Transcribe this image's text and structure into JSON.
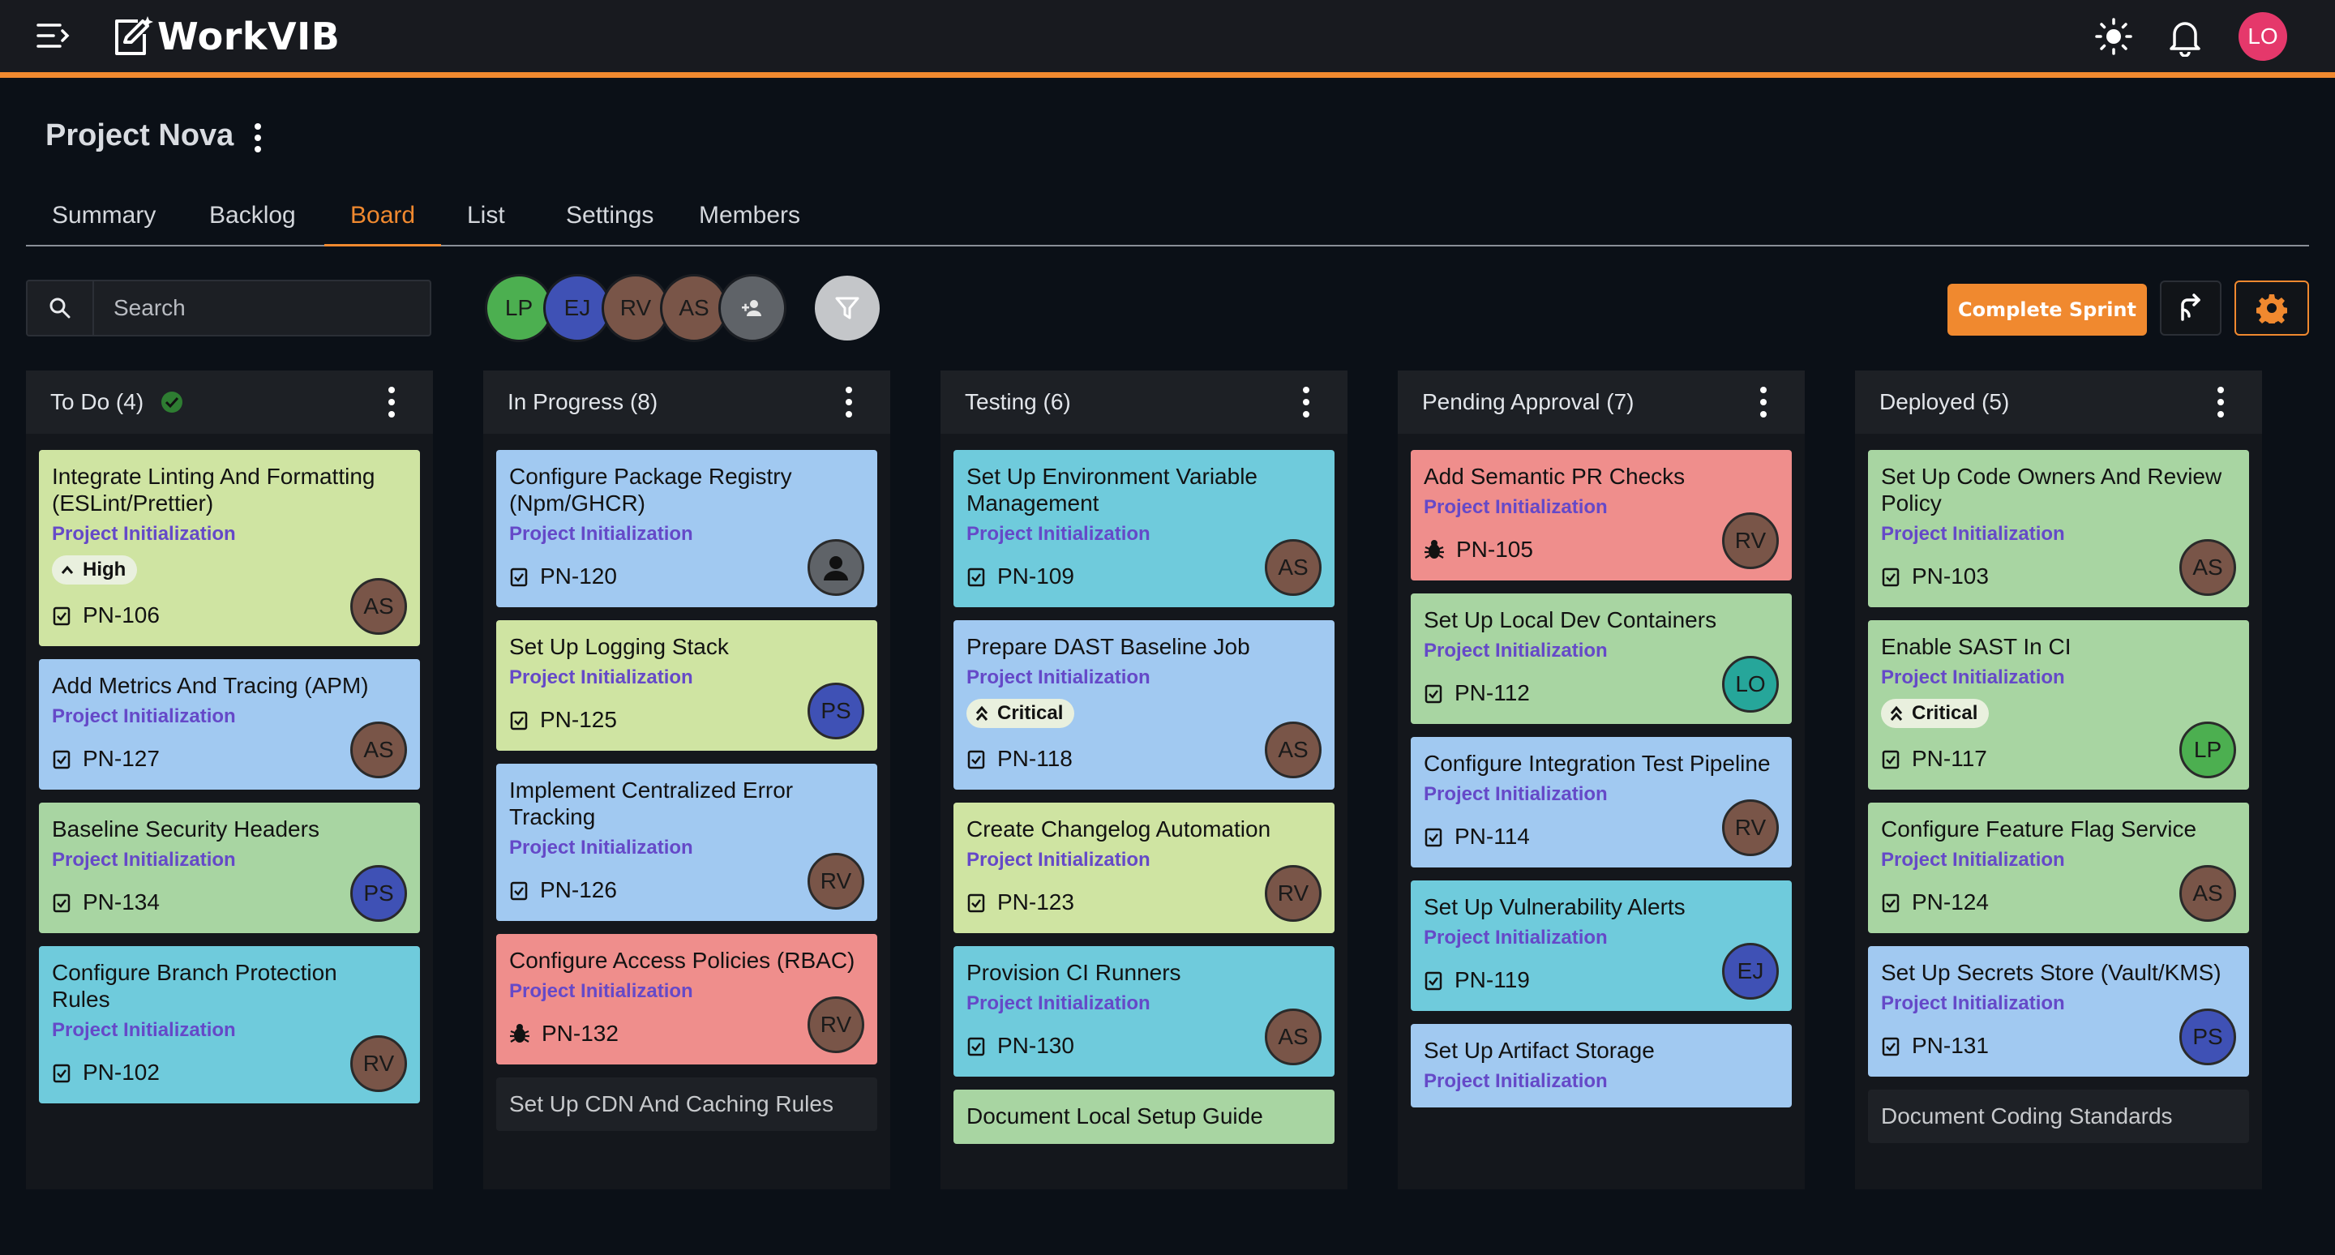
{
  "app": {
    "name": "WorkVIB",
    "user_initials": "LO"
  },
  "project": {
    "title": "Project Nova"
  },
  "tabs": [
    {
      "label": "Summary",
      "active": false
    },
    {
      "label": "Backlog",
      "active": false
    },
    {
      "label": "Board",
      "active": true
    },
    {
      "label": "List",
      "active": false
    },
    {
      "label": "Settings",
      "active": false
    },
    {
      "label": "Members",
      "active": false
    }
  ],
  "toolbar": {
    "search_placeholder": "Search",
    "members": [
      {
        "initials": "LP",
        "color": "#4caf50"
      },
      {
        "initials": "EJ",
        "color": "#3f51b5"
      },
      {
        "initials": "RV",
        "color": "#795548"
      },
      {
        "initials": "AS",
        "color": "#795548"
      }
    ],
    "complete_sprint_label": "Complete Sprint",
    "colors": {
      "accent": "#f0892f"
    }
  },
  "columns": [
    {
      "title": "To Do (4)",
      "done_check": true,
      "cards": [
        {
          "title": "Integrate Linting And Formatting (ESLint/Prettier)",
          "epic": "Project Initialization",
          "priority": "High",
          "type": "task",
          "id": "PN-106",
          "assignee": "AS",
          "color": "lime"
        },
        {
          "title": "Add Metrics And Tracing (APM)",
          "epic": "Project Initialization",
          "type": "task",
          "id": "PN-127",
          "assignee": "AS",
          "color": "blue"
        },
        {
          "title": "Baseline Security Headers",
          "epic": "Project Initialization",
          "type": "task",
          "id": "PN-134",
          "assignee": "PS",
          "color": "green"
        },
        {
          "title": "Configure Branch Protection Rules",
          "epic": "Project Initialization",
          "type": "task",
          "id": "PN-102",
          "assignee": "RV",
          "color": "cyan"
        }
      ]
    },
    {
      "title": "In Progress (8)",
      "cards": [
        {
          "title": "Configure Package Registry (Npm/GHCR)",
          "epic": "Project Initialization",
          "type": "task",
          "id": "PN-120",
          "assignee": "",
          "color": "blue"
        },
        {
          "title": "Set Up Logging Stack",
          "epic": "Project Initialization",
          "type": "task",
          "id": "PN-125",
          "assignee": "PS",
          "color": "lime"
        },
        {
          "title": "Implement Centralized Error Tracking",
          "epic": "Project Initialization",
          "type": "task",
          "id": "PN-126",
          "assignee": "RV",
          "color": "blue"
        },
        {
          "title": "Configure Access Policies (RBAC)",
          "epic": "Project Initialization",
          "type": "bug",
          "id": "PN-132",
          "assignee": "RV",
          "color": "red"
        }
      ],
      "peek": "Set Up CDN And Caching Rules"
    },
    {
      "title": "Testing (6)",
      "cards": [
        {
          "title": "Set Up Environment Variable Management",
          "epic": "Project Initialization",
          "type": "task",
          "id": "PN-109",
          "assignee": "AS",
          "color": "cyan"
        },
        {
          "title": "Prepare DAST Baseline Job",
          "epic": "Project Initialization",
          "priority": "Critical",
          "type": "task",
          "id": "PN-118",
          "assignee": "AS",
          "color": "blue"
        },
        {
          "title": "Create Changelog Automation",
          "epic": "Project Initialization",
          "type": "task",
          "id": "PN-123",
          "assignee": "RV",
          "color": "lime"
        },
        {
          "title": "Provision CI Runners",
          "epic": "Project Initialization",
          "type": "task",
          "id": "PN-130",
          "assignee": "AS",
          "color": "cyan"
        },
        {
          "title": "Document Local Setup Guide",
          "epic": "",
          "type": "task",
          "id": "",
          "assignee": "",
          "color": "green"
        }
      ]
    },
    {
      "title": "Pending Approval (7)",
      "cards": [
        {
          "title": "Add Semantic PR Checks",
          "epic": "Project Initialization",
          "type": "bug",
          "id": "PN-105",
          "assignee": "RV",
          "color": "red"
        },
        {
          "title": "Set Up Local Dev Containers",
          "epic": "Project Initialization",
          "type": "task",
          "id": "PN-112",
          "assignee": "LO",
          "color": "green"
        },
        {
          "title": "Configure Integration Test Pipeline",
          "epic": "Project Initialization",
          "type": "task",
          "id": "PN-114",
          "assignee": "RV",
          "color": "blue"
        },
        {
          "title": "Set Up Vulnerability Alerts",
          "epic": "Project Initialization",
          "type": "task",
          "id": "PN-119",
          "assignee": "EJ",
          "color": "cyan"
        },
        {
          "title": "Set Up Artifact Storage",
          "epic": "Project Initialization",
          "type": "task",
          "id": "",
          "assignee": "",
          "color": "blue"
        }
      ]
    },
    {
      "title": "Deployed (5)",
      "cards": [
        {
          "title": "Set Up Code Owners And Review Policy",
          "epic": "Project Initialization",
          "type": "task",
          "id": "PN-103",
          "assignee": "AS",
          "color": "green"
        },
        {
          "title": "Enable SAST In CI",
          "epic": "Project Initialization",
          "priority": "Critical",
          "type": "task",
          "id": "PN-117",
          "assignee": "LP",
          "color": "green"
        },
        {
          "title": "Configure Feature Flag Service",
          "epic": "Project Initialization",
          "type": "task",
          "id": "PN-124",
          "assignee": "AS",
          "color": "green"
        },
        {
          "title": "Set Up Secrets Store (Vault/KMS)",
          "epic": "Project Initialization",
          "type": "task",
          "id": "PN-131",
          "assignee": "PS",
          "color": "blue"
        }
      ],
      "peek": "Document Coding Standards"
    }
  ],
  "assignee_colors": {
    "AS": "#795548",
    "RV": "#795548",
    "PS": "#3f51b5",
    "EJ": "#3f51b5",
    "LO": "#26a69a",
    "LP": "#4caf50"
  }
}
